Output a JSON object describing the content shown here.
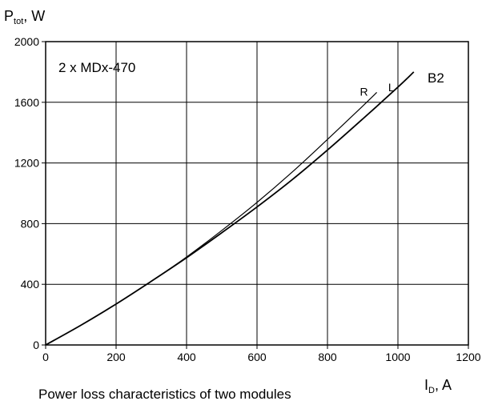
{
  "chart_data": {
    "type": "line",
    "title": "",
    "caption": "Power loss characteristics of two modules",
    "annotation": "2 x MDx-470",
    "curve_family_label": "B2",
    "ylabel": {
      "main": "P",
      "sub": "tot",
      "unit": ", W"
    },
    "xlabel": {
      "main": "I",
      "sub": "D",
      "unit": ", A"
    },
    "xlim": [
      0,
      1200
    ],
    "ylim": [
      0,
      2000
    ],
    "x_ticks": [
      0,
      200,
      400,
      600,
      800,
      1000,
      1200
    ],
    "y_ticks": [
      0,
      400,
      800,
      1200,
      1600,
      2000
    ],
    "x_tick_labels": [
      "0",
      "200",
      "400",
      "600",
      "800",
      "1000",
      "1200"
    ],
    "y_tick_labels": [
      "0",
      "400",
      "800",
      "1200",
      "1600",
      "2000"
    ],
    "grid": true,
    "series": [
      {
        "name": "R",
        "x": [
          0,
          100,
          200,
          300,
          400,
          500,
          600,
          700,
          800,
          900,
          940
        ],
        "y": [
          0,
          130,
          270,
          420,
          580,
          755,
          940,
          1140,
          1355,
          1575,
          1665
        ]
      },
      {
        "name": "L",
        "x": [
          0,
          100,
          200,
          300,
          400,
          500,
          600,
          700,
          800,
          900,
          1000,
          1045
        ],
        "y": [
          0,
          130,
          270,
          420,
          575,
          740,
          910,
          1090,
          1285,
          1490,
          1700,
          1800
        ]
      }
    ]
  }
}
